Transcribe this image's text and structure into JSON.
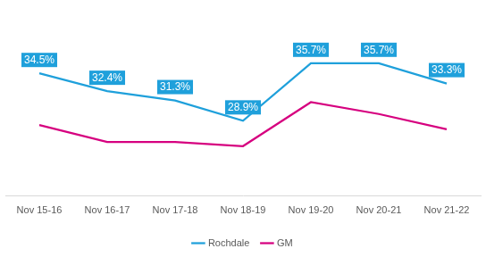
{
  "chart_data": {
    "type": "line",
    "categories": [
      "Nov 15-16",
      "Nov 16-17",
      "Nov 17-18",
      "Nov 18-19",
      "Nov 19-20",
      "Nov 20-21",
      "Nov 21-22"
    ],
    "series": [
      {
        "name": "Rochdale",
        "color": "#1fa0db",
        "marker": "none",
        "line_style": "solid",
        "data_labels": true,
        "values": [
          34.5,
          32.4,
          31.3,
          28.9,
          35.7,
          35.7,
          33.3
        ],
        "value_labels": [
          "34.5%",
          "32.4%",
          "31.3%",
          "28.9%",
          "35.7%",
          "35.7%",
          "33.3%"
        ]
      },
      {
        "name": "GM",
        "color": "#d6007f",
        "marker": "none",
        "line_style": "solid",
        "data_labels": false,
        "values": [
          28.4,
          26.4,
          26.4,
          25.9,
          31.1,
          29.7,
          27.9
        ]
      }
    ],
    "ylim": [
      20,
      40
    ],
    "grid": false,
    "legend": "bottom",
    "tick_labels": "x"
  }
}
